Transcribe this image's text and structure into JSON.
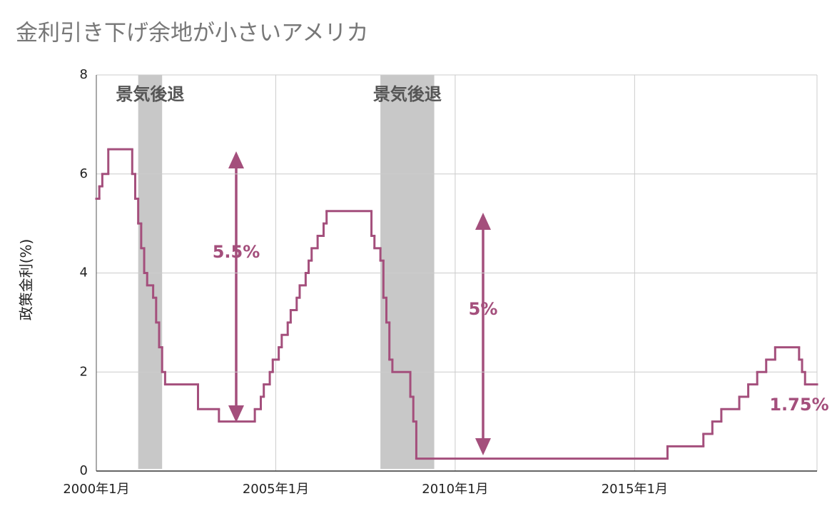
{
  "chart_data": {
    "type": "step",
    "title": "金利引き下げ余地が小さいアメリカ",
    "y_label": "政策金利(%)",
    "series": [
      {
        "name": "政策金利",
        "color": "#a44f7c",
        "x": [
          "2000-01",
          "2000-02",
          "2000-03",
          "2000-05",
          "2001-01",
          "2001-02",
          "2001-03",
          "2001-04",
          "2001-05",
          "2001-06",
          "2001-08",
          "2001-09",
          "2001-10",
          "2001-11",
          "2001-12",
          "2002-11",
          "2003-06",
          "2004-06",
          "2004-08",
          "2004-09",
          "2004-11",
          "2004-12",
          "2005-02",
          "2005-03",
          "2005-05",
          "2005-06",
          "2005-08",
          "2005-09",
          "2005-11",
          "2005-12",
          "2006-01",
          "2006-03",
          "2006-05",
          "2006-06",
          "2007-09",
          "2007-10",
          "2007-12",
          "2008-01",
          "2008-02",
          "2008-03",
          "2008-04",
          "2008-10",
          "2008-11",
          "2008-12",
          "2015-12",
          "2016-12",
          "2017-03",
          "2017-06",
          "2017-12",
          "2018-03",
          "2018-06",
          "2018-09",
          "2018-12",
          "2019-08",
          "2019-09",
          "2019-10"
        ],
        "values": [
          5.5,
          5.75,
          6,
          6.5,
          6,
          5.5,
          5,
          4.5,
          4,
          3.75,
          3.5,
          3,
          2.5,
          2,
          1.75,
          1.25,
          1,
          1.25,
          1.5,
          1.75,
          2,
          2.25,
          2.5,
          2.75,
          3,
          3.25,
          3.5,
          3.75,
          4,
          4.25,
          4.5,
          4.75,
          5,
          5.25,
          4.75,
          4.5,
          4.25,
          3.5,
          3,
          2.25,
          2,
          1.5,
          1,
          0.25,
          0.5,
          0.75,
          1,
          1.25,
          1.5,
          1.75,
          2,
          2.25,
          2.5,
          2.25,
          2,
          1.75
        ]
      }
    ],
    "recessions": [
      {
        "label": "景気後退",
        "start": "2001-03",
        "end": "2001-11"
      },
      {
        "label": "景気後退",
        "start": "2007-12",
        "end": "2009-06"
      }
    ],
    "annotations": [
      "5.5%",
      "5%",
      "1.75%"
    ],
    "xlim": [
      "2000-01",
      "2020-02"
    ],
    "xticks": [
      {
        "value": "2000-01",
        "label": "2000年1月"
      },
      {
        "value": "2005-01",
        "label": "2005年1月"
      },
      {
        "value": "2010-01",
        "label": "2010年1月"
      },
      {
        "value": "2015-01",
        "label": "2015年1月"
      }
    ],
    "ylim": [
      0,
      8
    ],
    "yticks": [
      0,
      2,
      4,
      6,
      8
    ],
    "grid": true
  }
}
